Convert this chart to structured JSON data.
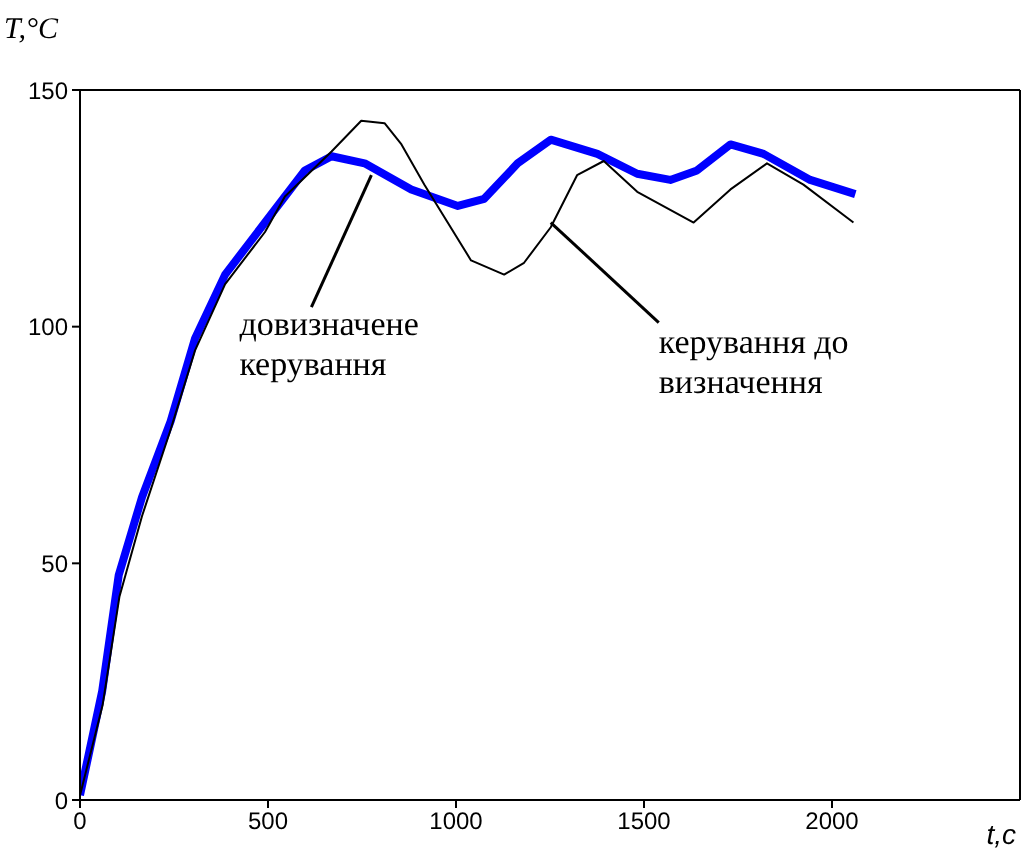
{
  "chart_data": {
    "type": "line",
    "xlabel": "t,c",
    "ylabel": "T,°C",
    "xlim": [
      0,
      2500
    ],
    "ylim": [
      0,
      150
    ],
    "xticks": [
      0,
      500,
      1000,
      1500,
      2000
    ],
    "yticks": [
      0,
      50,
      100,
      150
    ],
    "legend": false,
    "grid": false,
    "marker": "none",
    "line_style": "solid",
    "series": [
      {
        "color": "#0000ff",
        "x": [
          0,
          59,
          103,
          165,
          241,
          306,
          386,
          492,
          598,
          669,
          757,
          881,
          1005,
          1075,
          1164,
          1252,
          1376,
          1482,
          1570,
          1641,
          1730,
          1818,
          1942,
          2062
        ],
        "values": [
          1,
          23,
          47.5,
          64,
          80,
          97.5,
          111,
          122,
          133,
          136,
          134.5,
          129,
          125.5,
          127,
          134.5,
          139.5,
          136.5,
          132.3,
          131,
          133,
          138.5,
          136.5,
          131,
          128
        ]
      },
      {
        "color": "#000000",
        "x": [
          0,
          60,
          105,
          165,
          240,
          306,
          386,
          492,
          545,
          669,
          748,
          810,
          855,
          916,
          1040,
          1128,
          1181,
          1252,
          1322,
          1393,
          1482,
          1632,
          1730,
          1827,
          1924,
          2057
        ],
        "values": [
          1,
          20,
          43,
          60,
          78,
          95,
          109,
          120,
          127.5,
          137,
          143.5,
          143,
          138.5,
          130,
          114,
          111,
          113.5,
          121,
          132,
          135,
          128.5,
          122,
          129,
          134.5,
          130,
          122
        ]
      }
    ],
    "annotations": [
      {
        "text": "довизначене\nкерування",
        "x": 775,
        "y": 132
      },
      {
        "text": "керування до\nвизначення",
        "x": 1252,
        "y": 122
      }
    ]
  }
}
